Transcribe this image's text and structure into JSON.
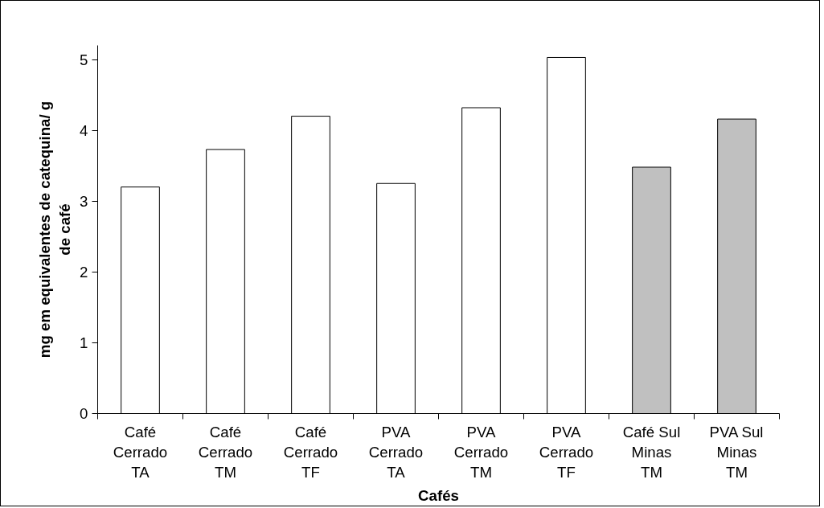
{
  "chart_data": {
    "type": "bar",
    "xlabel": "Cafés",
    "ylabel": "mg em equivalentes de catequina/ g\nde café",
    "categories": [
      "Café\nCerrado\nTA",
      "Café\nCerrado\nTM",
      "Café\nCerrado\nTF",
      "PVA\nCerrado\nTA",
      "PVA\nCerrado\nTM",
      "PVA\nCerrado\nTF",
      "Café Sul\nMinas\nTM",
      "PVA Sul\nMinas\nTM"
    ],
    "values": [
      3.2,
      3.73,
      4.2,
      3.25,
      4.32,
      5.03,
      3.48,
      4.16
    ],
    "colors": [
      "#ffffff",
      "#ffffff",
      "#ffffff",
      "#ffffff",
      "#ffffff",
      "#ffffff",
      "#c0c0c0",
      "#c0c0c0"
    ],
    "ylim": [
      0,
      5.2
    ],
    "yticks": [
      0,
      1,
      2,
      3,
      4,
      5
    ],
    "grid": false
  }
}
